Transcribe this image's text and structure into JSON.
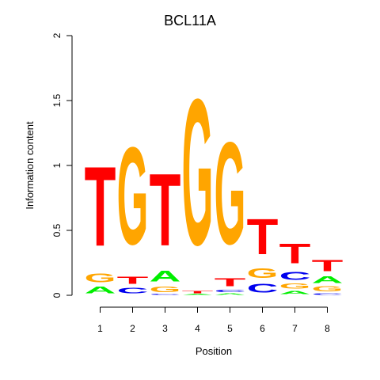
{
  "chart_data": {
    "type": "sequence-logo",
    "title": "BCL11A",
    "xlabel": "Position",
    "ylabel": "Information content",
    "ylim": [
      0,
      2
    ],
    "yticks": [
      0,
      0.5,
      1,
      1.5,
      2
    ],
    "ytick_labels": [
      "0",
      "0.5",
      "1",
      "1.5",
      "2"
    ],
    "positions": [
      1,
      2,
      3,
      4,
      5,
      6,
      7,
      8
    ],
    "position_labels": [
      "1",
      "2",
      "3",
      "4",
      "5",
      "6",
      "7",
      "8"
    ],
    "colors": {
      "A": "#00ee00",
      "C": "#0000ee",
      "G": "#ffa500",
      "T": "#ff0000"
    },
    "stacks": [
      {
        "position": 1,
        "letters": [
          {
            "base": "A",
            "height": 0.08
          },
          {
            "base": "G",
            "height": 0.11
          },
          {
            "base": "T",
            "height": 0.98
          }
        ]
      },
      {
        "position": 2,
        "letters": [
          {
            "base": "C",
            "height": 0.07
          },
          {
            "base": "T",
            "height": 0.09
          },
          {
            "base": "G",
            "height": 1.2
          }
        ]
      },
      {
        "position": 3,
        "letters": [
          {
            "base": "C",
            "height": 0.01
          },
          {
            "base": "G",
            "height": 0.07
          },
          {
            "base": "A",
            "height": 0.13
          },
          {
            "base": "T",
            "height": 0.89
          }
        ]
      },
      {
        "position": 4,
        "letters": [
          {
            "base": "A",
            "height": 0.01
          },
          {
            "base": "T",
            "height": 0.03
          },
          {
            "base": "G",
            "height": 1.8
          }
        ]
      },
      {
        "position": 5,
        "letters": [
          {
            "base": "A",
            "height": 0.02
          },
          {
            "base": "C",
            "height": 0.03
          },
          {
            "base": "T",
            "height": 0.1
          },
          {
            "base": "G",
            "height": 1.26
          }
        ]
      },
      {
        "position": 6,
        "letters": [
          {
            "base": "C",
            "height": 0.11
          },
          {
            "base": "G",
            "height": 0.12
          },
          {
            "base": "T",
            "height": 0.44
          }
        ]
      },
      {
        "position": 7,
        "letters": [
          {
            "base": "A",
            "height": 0.04
          },
          {
            "base": "G",
            "height": 0.06
          },
          {
            "base": "C",
            "height": 0.1
          },
          {
            "base": "T",
            "height": 0.24
          }
        ]
      },
      {
        "position": 8,
        "letters": [
          {
            "base": "C",
            "height": 0.02
          },
          {
            "base": "G",
            "height": 0.06
          },
          {
            "base": "A",
            "height": 0.08
          },
          {
            "base": "T",
            "height": 0.14
          }
        ]
      }
    ]
  }
}
